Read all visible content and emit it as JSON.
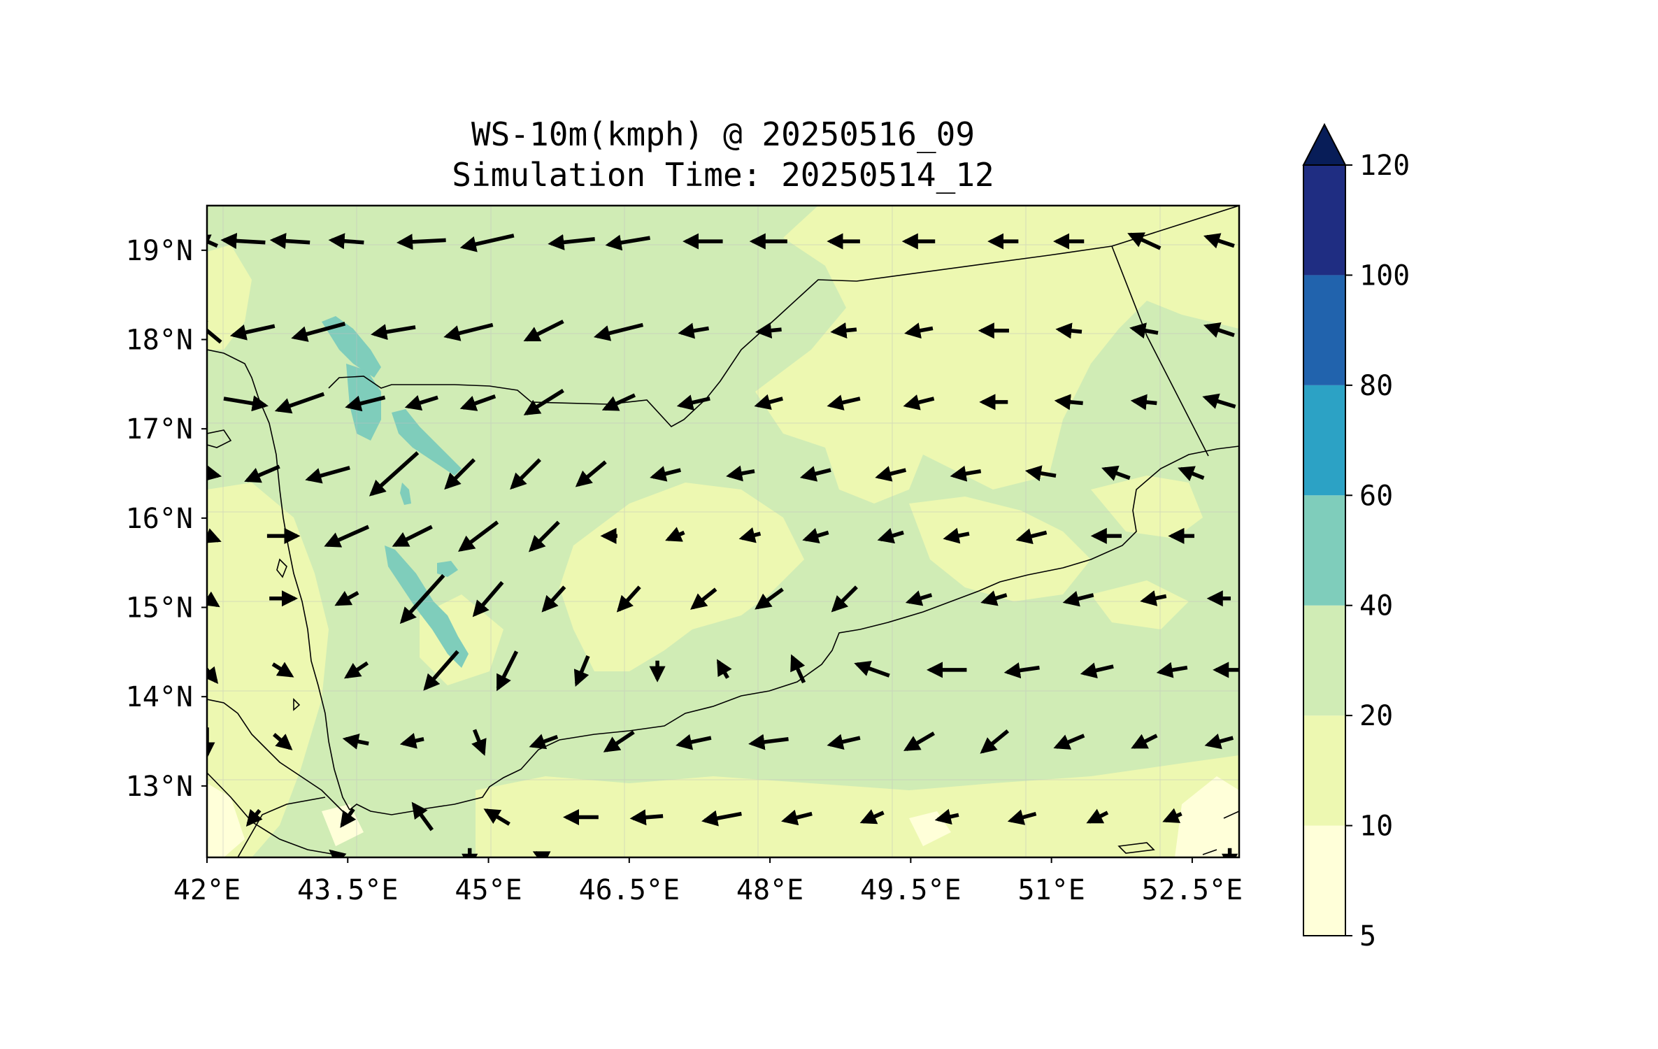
{
  "title": {
    "line1": "WS-10m(kmph) @ 20250516_09",
    "line2": "Simulation Time: 20250514_12"
  },
  "map": {
    "lon_range": [
      42.0,
      53.0
    ],
    "lat_range": [
      12.2,
      19.5
    ],
    "x_ticks": [
      "42°E",
      "43.5°E",
      "45°E",
      "46.5°E",
      "48°E",
      "49.5°E",
      "51°E",
      "52.5°E"
    ],
    "x_tick_values": [
      42.0,
      43.5,
      45.0,
      46.5,
      48.0,
      49.5,
      51.0,
      52.5
    ],
    "y_ticks": [
      "19°N",
      "18°N",
      "17°N",
      "16°N",
      "15°N",
      "14°N",
      "13°N"
    ],
    "y_tick_values": [
      19,
      18,
      17,
      16,
      15,
      14,
      13
    ]
  },
  "colorbar": {
    "levels": [
      "5",
      "10",
      "20",
      "40",
      "60",
      "80",
      "100",
      "120"
    ],
    "colors": [
      "#ffffd9",
      "#edf8b1",
      "#d0ecb5",
      "#7fcdbb",
      "#2ca2c5",
      "#2163ad",
      "#1f2d82"
    ],
    "extend_color": "#081d58",
    "extend": "max"
  },
  "colors": {
    "land_light": "#edf8b1",
    "land_mid": "#d0ecb5",
    "calm": "#ffffd9",
    "strong": "#7fcdbb",
    "vector": "#000000"
  },
  "wind_rows": [
    {
      "lat": 19.1,
      "lon": [
        42.0,
        42.4,
        42.9,
        43.5,
        44.3,
        45.0,
        45.9,
        46.5,
        47.3,
        48.0,
        48.8,
        49.6,
        50.5,
        51.2,
        52.0,
        52.8
      ],
      "u": [
        -9,
        -18,
        -16,
        -14,
        -20,
        -22,
        -19,
        -18,
        -16,
        -15,
        -13,
        -13,
        -12,
        -12,
        -13,
        -12
      ],
      "v": [
        4,
        1,
        1,
        1,
        -1,
        -5,
        -2,
        -3,
        0,
        0,
        0,
        0,
        0,
        0,
        6,
        4
      ]
    },
    {
      "lat": 18.1,
      "lon": [
        42.0,
        42.5,
        43.2,
        44.0,
        44.8,
        45.6,
        46.4,
        47.2,
        48.0,
        48.8,
        49.6,
        50.4,
        51.2,
        52.0,
        52.8
      ],
      "u": [
        -12,
        -18,
        -22,
        -18,
        -20,
        -16,
        -20,
        -12,
        -10,
        -10,
        -11,
        -12,
        -10,
        -11,
        -12
      ],
      "v": [
        10,
        -4,
        -6,
        -3,
        -5,
        -8,
        -5,
        -2,
        -1,
        -1,
        -2,
        0,
        1,
        2,
        4
      ]
    },
    {
      "lat": 17.3,
      "lon": [
        42.4,
        43.0,
        43.7,
        44.3,
        44.9,
        45.6,
        46.4,
        47.2,
        48.0,
        48.8,
        49.6,
        50.4,
        51.2,
        52.0,
        52.8
      ],
      "u": [
        18,
        -20,
        -16,
        -13,
        -14,
        -16,
        -13,
        -13,
        -11,
        -13,
        -12,
        -11,
        -11,
        -10,
        -13
      ],
      "v": [
        -3,
        -7,
        -4,
        -4,
        -5,
        -10,
        -6,
        -3,
        -3,
        -3,
        -3,
        0,
        1,
        1,
        4
      ]
    },
    {
      "lat": 16.5,
      "lon": [
        42.0,
        42.6,
        43.3,
        44.0,
        44.7,
        45.4,
        46.1,
        46.9,
        47.7,
        48.5,
        49.3,
        50.1,
        50.9,
        51.7,
        52.5
      ],
      "u": [
        10,
        -14,
        -18,
        -20,
        -12,
        -12,
        -12,
        -12,
        -11,
        -12,
        -12,
        -12,
        -12,
        -11,
        -10
      ],
      "v": [
        -2,
        -6,
        -5,
        -18,
        -12,
        -12,
        -10,
        -3,
        -2,
        -3,
        -3,
        -2,
        2,
        4,
        4
      ]
    },
    {
      "lat": 15.8,
      "lon": [
        42.0,
        42.8,
        43.5,
        44.2,
        44.9,
        45.6,
        46.3,
        47.0,
        47.8,
        48.5,
        49.3,
        50.0,
        50.8,
        51.6,
        52.4
      ],
      "u": [
        10,
        13,
        -18,
        -16,
        -16,
        -12,
        -6,
        -7,
        -8,
        -10,
        -10,
        -10,
        -12,
        -12,
        -10
      ],
      "v": [
        -4,
        0,
        -8,
        -8,
        -12,
        -12,
        0,
        -3,
        -2,
        -3,
        -3,
        -2,
        -3,
        0,
        0
      ]
    },
    {
      "lat": 15.1,
      "lon": [
        42.0,
        42.8,
        43.5,
        44.3,
        45.0,
        45.7,
        46.5,
        47.3,
        48.0,
        48.8,
        49.6,
        50.4,
        51.3,
        52.1,
        52.8
      ],
      "u": [
        9,
        11,
        -9,
        -18,
        -12,
        -9,
        -9,
        -10,
        -11,
        -10,
        -10,
        -10,
        -12,
        -10,
        -9
      ],
      "v": [
        -6,
        0,
        -5,
        -20,
        -14,
        -10,
        -10,
        -8,
        -8,
        -10,
        -3,
        -3,
        -3,
        -2,
        0
      ]
    },
    {
      "lat": 14.3,
      "lon": [
        42.0,
        42.8,
        43.6,
        44.5,
        45.2,
        46.0,
        46.8,
        47.5,
        48.3,
        49.1,
        49.9,
        50.7,
        51.5,
        52.3,
        52.9
      ],
      "u": [
        8,
        8,
        -9,
        -14,
        -8,
        -5,
        0,
        -4,
        -5,
        -14,
        -16,
        -14,
        -13,
        -12,
        -12
      ],
      "v": [
        -10,
        -5,
        -6,
        -16,
        -16,
        -12,
        -8,
        7,
        11,
        5,
        0,
        -2,
        -3,
        -2,
        0
      ]
    },
    {
      "lat": 13.5,
      "lon": [
        42.0,
        42.8,
        43.6,
        44.2,
        44.9,
        45.6,
        46.4,
        47.2,
        48.0,
        48.8,
        49.6,
        50.4,
        51.2,
        52.0,
        52.8
      ],
      "u": [
        0,
        7,
        -10,
        -9,
        4,
        -11,
        -12,
        -14,
        -16,
        -13,
        -12,
        -11,
        -12,
        -10,
        -11
      ],
      "v": [
        -12,
        -6,
        2,
        -2,
        -10,
        -4,
        -8,
        -3,
        -2,
        -3,
        -7,
        -9,
        -5,
        -5,
        -3
      ]
    },
    {
      "lat": 12.65,
      "lon": [
        42.5,
        43.5,
        44.3,
        45.1,
        46.0,
        46.7,
        47.5,
        48.3,
        49.1,
        49.9,
        50.7,
        51.5,
        52.3
      ],
      "u": [
        -5,
        -5,
        -8,
        -10,
        -14,
        -13,
        -16,
        -12,
        -9,
        -9,
        -11,
        -8,
        -7
      ],
      "v": [
        -6,
        -7,
        11,
        6,
        0,
        -1,
        -3,
        -3,
        -4,
        -2,
        -3,
        -4,
        -3
      ]
    },
    {
      "lat": 12.2,
      "lon": [
        43.4,
        44.8,
        45.6,
        52.9
      ],
      "u": [
        -6,
        0,
        -8,
        0
      ],
      "v": [
        5,
        -8,
        4,
        -8
      ]
    }
  ]
}
